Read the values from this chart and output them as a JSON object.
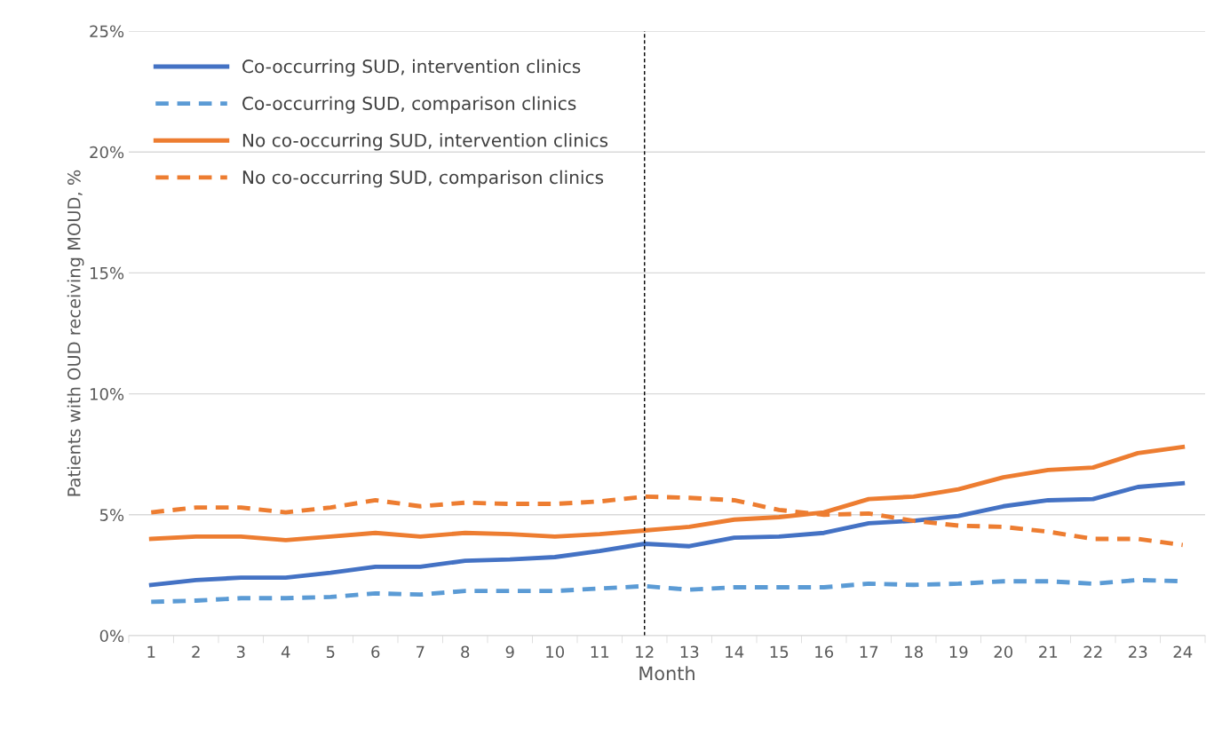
{
  "chart_data": {
    "type": "line",
    "xlabel": "Month",
    "ylabel": "Patients with OUD receiving MOUD, %",
    "categories": [
      "1",
      "2",
      "3",
      "4",
      "5",
      "6",
      "7",
      "8",
      "9",
      "10",
      "11",
      "12",
      "13",
      "14",
      "15",
      "16",
      "17",
      "18",
      "19",
      "20",
      "21",
      "22",
      "23",
      "24"
    ],
    "series": [
      {
        "name": "Co-occurring SUD, intervention clinics",
        "color": "#4472c4",
        "line_style": "solid",
        "values": [
          2.1,
          2.3,
          2.4,
          2.4,
          2.6,
          2.85,
          2.85,
          3.1,
          3.15,
          3.25,
          3.5,
          3.8,
          3.7,
          4.05,
          4.1,
          4.25,
          4.65,
          4.75,
          4.95,
          5.35,
          5.6,
          5.65,
          6.15,
          6.3
        ]
      },
      {
        "name": "Co-occurring SUD, comparison clinics",
        "color": "#5b9bd5",
        "line_style": "dashed",
        "values": [
          1.4,
          1.45,
          1.55,
          1.55,
          1.6,
          1.75,
          1.7,
          1.85,
          1.85,
          1.85,
          1.95,
          2.05,
          1.9,
          2.0,
          2.0,
          2.0,
          2.15,
          2.1,
          2.15,
          2.25,
          2.25,
          2.15,
          2.3,
          2.25
        ]
      },
      {
        "name": "No co-occurring SUD, intervention clinics",
        "color": "#ed7d31",
        "line_style": "solid",
        "values": [
          4.0,
          4.1,
          4.1,
          3.95,
          4.1,
          4.25,
          4.1,
          4.25,
          4.2,
          4.1,
          4.2,
          4.35,
          4.5,
          4.8,
          4.9,
          5.1,
          5.65,
          5.75,
          6.05,
          6.55,
          6.85,
          6.95,
          7.55,
          7.8
        ]
      },
      {
        "name": "No co-occurring SUD, comparison clinics",
        "color": "#ed7d31",
        "line_style": "dashed",
        "values": [
          5.1,
          5.3,
          5.3,
          5.1,
          5.3,
          5.6,
          5.35,
          5.5,
          5.45,
          5.45,
          5.55,
          5.75,
          5.7,
          5.6,
          5.2,
          5.0,
          5.05,
          4.75,
          4.55,
          4.5,
          4.3,
          4.0,
          4.0,
          3.75
        ]
      }
    ],
    "ylim": [
      0,
      25
    ],
    "yticks": [
      {
        "value": 0,
        "label": "0%"
      },
      {
        "value": 5,
        "label": "5%"
      },
      {
        "value": 10,
        "label": "10%"
      },
      {
        "value": 15,
        "label": "15%"
      },
      {
        "value": 20,
        "label": "20%"
      },
      {
        "value": 25,
        "label": "25%"
      }
    ],
    "ref_lines": [
      {
        "axis": "x",
        "value": "12",
        "color": "#000000",
        "line_style": "dashed"
      }
    ],
    "grid": "y",
    "legend": "top left",
    "marker": "none"
  }
}
